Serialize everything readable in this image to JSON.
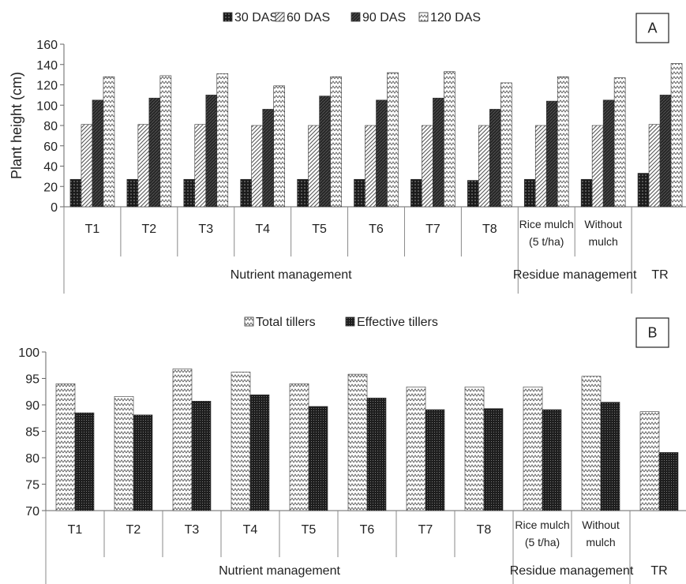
{
  "chart_data": [
    {
      "type": "bar",
      "panel_label": "A",
      "ylabel": "Plant height (cm)",
      "ylim": [
        0,
        160
      ],
      "yticks": [
        0,
        20,
        40,
        60,
        80,
        100,
        120,
        140,
        160
      ],
      "grid": false,
      "legend_position": "top-center",
      "categories": [
        [
          "T1"
        ],
        [
          "T2"
        ],
        [
          "T3"
        ],
        [
          "T4"
        ],
        [
          "T5"
        ],
        [
          "T6"
        ],
        [
          "T7"
        ],
        [
          "T8"
        ],
        [
          "Rice mulch",
          "(5 t/ha)"
        ],
        [
          "Without",
          "mulch"
        ],
        []
      ],
      "groups": [
        {
          "label": "Nutrient management",
          "span": 8
        },
        {
          "label": "Residue management",
          "span": 2
        },
        {
          "label": "TR",
          "span": 1
        }
      ],
      "series": [
        {
          "name": "30 DAS",
          "pattern": "dots",
          "values": [
            27,
            27,
            27,
            27,
            27,
            27,
            27,
            26,
            27,
            27,
            33
          ]
        },
        {
          "name": "60 DAS",
          "pattern": "hatch",
          "values": [
            81,
            81,
            81,
            80,
            80,
            80,
            80,
            80,
            80,
            80,
            81
          ]
        },
        {
          "name": "90 DAS",
          "pattern": "dark",
          "values": [
            105,
            107,
            110,
            96,
            109,
            105,
            107,
            96,
            104,
            105,
            110
          ]
        },
        {
          "name": "120 DAS",
          "pattern": "zigzag",
          "values": [
            128,
            129,
            131,
            119,
            128,
            132,
            133,
            122,
            128,
            127,
            141
          ]
        }
      ]
    },
    {
      "type": "bar",
      "panel_label": "B",
      "ylabel": "",
      "ylim": [
        70,
        100
      ],
      "yticks": [
        70,
        75,
        80,
        85,
        90,
        95,
        100
      ],
      "grid": false,
      "legend_position": "top-center",
      "categories": [
        [
          "T1"
        ],
        [
          "T2"
        ],
        [
          "T3"
        ],
        [
          "T4"
        ],
        [
          "T5"
        ],
        [
          "T6"
        ],
        [
          "T7"
        ],
        [
          "T8"
        ],
        [
          "Rice mulch",
          "(5 t/ha)"
        ],
        [
          "Without",
          "mulch"
        ],
        []
      ],
      "groups": [
        {
          "label": "Nutrient management",
          "span": 8
        },
        {
          "label": "Residue management",
          "span": 2
        },
        {
          "label": "TR",
          "span": 1
        }
      ],
      "series": [
        {
          "name": "Total tillers",
          "pattern": "zigzag",
          "values": [
            94.0,
            91.6,
            96.8,
            96.2,
            94.0,
            95.8,
            93.4,
            93.4,
            93.4,
            95.4,
            88.7
          ]
        },
        {
          "name": "Effective tillers",
          "pattern": "dense",
          "values": [
            88.5,
            88.1,
            90.7,
            91.9,
            89.7,
            91.3,
            89.1,
            89.3,
            89.1,
            90.5,
            81.0
          ]
        }
      ]
    }
  ]
}
